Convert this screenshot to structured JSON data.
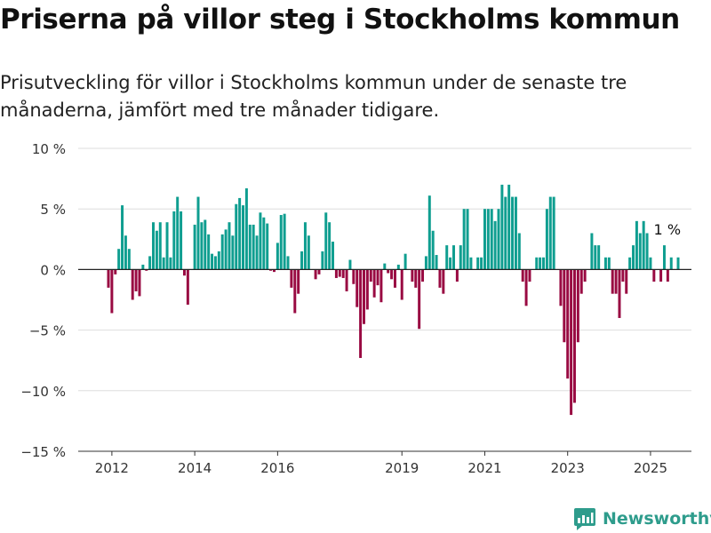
{
  "title": "Priserna på villor steg i Stockholms kommun",
  "subtitle": "Prisutveckling för villor i Stockholms kommun under de senaste tre månaderna, jämfört med tre månader tidigare.",
  "brand": {
    "name": "Newsworthy",
    "color": "#2e9c8c"
  },
  "chart_data": {
    "type": "bar",
    "title": "",
    "xlabel": "",
    "ylabel": "",
    "ylim": [
      -15,
      10
    ],
    "yticks": [
      {
        "value": 10,
        "label": "10 %"
      },
      {
        "value": 5,
        "label": "5 %"
      },
      {
        "value": 0,
        "label": "0 %"
      },
      {
        "value": -5,
        "label": "−5 %"
      },
      {
        "value": -10,
        "label": "−10 %"
      },
      {
        "value": -15,
        "label": "−15 %"
      }
    ],
    "xticks": [
      {
        "label": "2012",
        "x": 2012
      },
      {
        "label": "2014",
        "x": 2014
      },
      {
        "label": "2016",
        "x": 2016
      },
      {
        "label": "2019",
        "x": 2019
      },
      {
        "label": "2021",
        "x": 2021
      },
      {
        "label": "2023",
        "x": 2023
      },
      {
        "label": "2025",
        "x": 2025
      }
    ],
    "colors": {
      "positive": "#0f9e90",
      "negative": "#990a42"
    },
    "grid": true,
    "legend": "none",
    "start": "2011-12",
    "frequency": "monthly",
    "values": [
      -1.5,
      -3.6,
      -0.4,
      1.7,
      5.3,
      2.8,
      1.7,
      -2.5,
      -1.8,
      -2.2,
      0.4,
      -0.1,
      1.1,
      3.9,
      3.2,
      3.9,
      1.0,
      3.9,
      1.0,
      4.8,
      6.0,
      4.8,
      -0.5,
      -2.9,
      0.0,
      3.7,
      6.0,
      3.9,
      4.1,
      2.9,
      1.3,
      1.1,
      1.5,
      2.9,
      3.3,
      3.9,
      2.8,
      5.4,
      5.9,
      5.3,
      6.7,
      3.7,
      3.7,
      2.8,
      4.7,
      4.3,
      3.8,
      -0.1,
      -0.2,
      2.2,
      4.5,
      4.6,
      1.1,
      -1.5,
      -3.6,
      -2.0,
      1.5,
      3.9,
      2.8,
      0.0,
      -0.8,
      -0.4,
      1.5,
      4.7,
      3.9,
      2.3,
      -0.7,
      -0.6,
      -0.7,
      -1.8,
      0.8,
      -1.2,
      -3.1,
      -7.3,
      -4.5,
      -3.3,
      -1.0,
      -2.3,
      -1.3,
      -2.7,
      0.5,
      -0.3,
      -0.8,
      -1.5,
      0.4,
      -2.5,
      1.3,
      0.0,
      -1.0,
      -1.5,
      -4.9,
      -1.0,
      1.1,
      6.1,
      3.2,
      1.2,
      -1.5,
      -2.0,
      2.0,
      1.0,
      2.0,
      -1.0,
      2.0,
      5.0,
      5.0,
      1.0,
      0.0,
      1.0,
      1.0,
      5.0,
      5.0,
      5.0,
      4.0,
      5.0,
      7.0,
      6.0,
      7.0,
      6.0,
      6.0,
      3.0,
      -1.0,
      -3.0,
      -1.0,
      0.0,
      1.0,
      1.0,
      1.0,
      5.0,
      6.0,
      6.0,
      0.0,
      -3.0,
      -6.0,
      -9.0,
      -12.0,
      -11.0,
      -6.0,
      -2.0,
      -1.0,
      0.0,
      3.0,
      2.0,
      2.0,
      0.0,
      1.0,
      1.0,
      -2.0,
      -2.0,
      -4.0,
      -1.0,
      -2.0,
      1.0,
      2.0,
      4.0,
      3.0,
      4.0,
      3.0,
      1.0,
      -1.0,
      0.0,
      -1.0,
      2.0,
      -1.0,
      1.0,
      0.0,
      1.0
    ],
    "annotation": {
      "label": "1 %",
      "value": 1.0
    }
  }
}
